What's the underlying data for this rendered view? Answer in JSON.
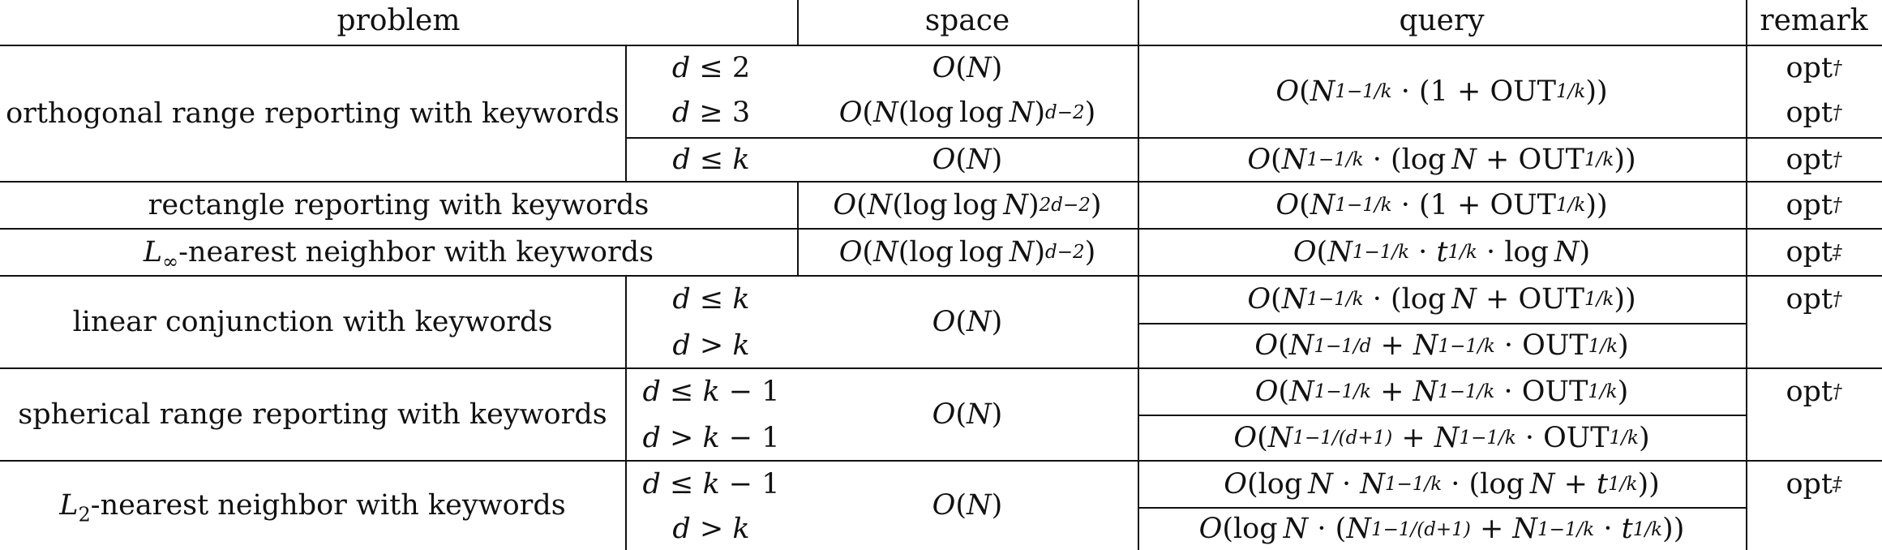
{
  "headers": {
    "problem": "problem",
    "space": "space",
    "query": "query",
    "remark": "remark"
  },
  "rows": [
    {
      "problem": "orthogonal range reporting with keywords",
      "conditions": [
        "d ≤ 2",
        "d ≥ 3",
        "d ≤ k"
      ],
      "space": [
        "O(N)",
        "O(N(log log N)^{d−2})",
        "O(N)"
      ],
      "query": [
        "O(N^{1−1/k} · (1 + OUT^{1/k}))",
        "O(N^{1−1/k} · (log N + OUT^{1/k}))"
      ],
      "remark": [
        "opt†",
        "opt†",
        "opt†"
      ]
    },
    {
      "problem": "rectangle reporting with keywords",
      "space": "O(N(log log N)^{2d−2})",
      "query": "O(N^{1−1/k} · (1 + OUT^{1/k}))",
      "remark": "opt†"
    },
    {
      "problem": "L∞-nearest neighbor with keywords",
      "space": "O(N(log log N)^{d−2})",
      "query": "O(N^{1−1/k} · t^{1/k} · log N)",
      "remark": "opt‡"
    },
    {
      "problem": "linear conjunction with keywords",
      "conditions": [
        "d ≤ k",
        "d > k"
      ],
      "space": "O(N)",
      "query": [
        "O(N^{1−1/k} · (log N + OUT^{1/k}))",
        "O(N^{1−1/d} + N^{1−1/k} · OUT^{1/k})"
      ],
      "remark": [
        "opt†",
        ""
      ]
    },
    {
      "problem": "spherical range reporting with keywords",
      "conditions": [
        "d ≤ k − 1",
        "d > k − 1"
      ],
      "space": "O(N)",
      "query": [
        "O(N^{1−1/k} + N^{1−1/k} · OUT^{1/k})",
        "O(N^{1−1/(d+1)} + N^{1−1/k} · OUT^{1/k})"
      ],
      "remark": [
        "opt†",
        ""
      ]
    },
    {
      "problem": "L2-nearest neighbor with keywords",
      "conditions": [
        "d ≤ k − 1",
        "d > k"
      ],
      "space": "O(N)",
      "query": [
        "O(log N · N^{1−1/k} · (log N + t^{1/k}))",
        "O(log N · (N^{1−1/(d+1)} + N^{1−1/k} · t^{1/k}))"
      ],
      "remark": [
        "opt‡",
        ""
      ]
    }
  ]
}
